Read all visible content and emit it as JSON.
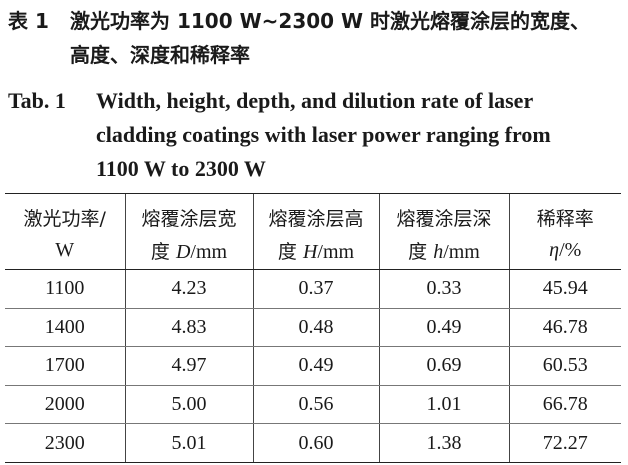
{
  "caption_cn": {
    "label": "表 1",
    "line1": "激光功率为 1100 W~2300 W 时激光熔覆涂层的宽度、",
    "line2": "高度、深度和稀释率"
  },
  "caption_en": {
    "label": "Tab. 1",
    "line1": "Width, height, depth, and dilution rate of laser",
    "line2": "cladding coatings with laser power ranging from",
    "line3": "1100 W to 2300 W"
  },
  "table": {
    "headers": [
      {
        "line1": "激光功率/",
        "line2": "W"
      },
      {
        "line1": "熔覆涂层宽",
        "line2_cn": "度 ",
        "line2_sym": "D",
        "line2_unit": "/mm"
      },
      {
        "line1": "熔覆涂层高",
        "line2_cn": "度 ",
        "line2_sym": "H",
        "line2_unit": "/mm"
      },
      {
        "line1": "熔覆涂层深",
        "line2_cn": "度 ",
        "line2_sym": "h",
        "line2_unit": "/mm"
      },
      {
        "line1": "稀释率",
        "line2_cn": "",
        "line2_sym": "η",
        "line2_unit": "/%"
      }
    ],
    "rows": [
      [
        "1100",
        "4.23",
        "0.37",
        "0.33",
        "45.94"
      ],
      [
        "1400",
        "4.83",
        "0.48",
        "0.49",
        "46.78"
      ],
      [
        "1700",
        "4.97",
        "0.49",
        "0.69",
        "60.53"
      ],
      [
        "2000",
        "5.00",
        "0.56",
        "1.01",
        "66.78"
      ],
      [
        "2300",
        "5.01",
        "0.60",
        "1.38",
        "72.27"
      ]
    ]
  }
}
